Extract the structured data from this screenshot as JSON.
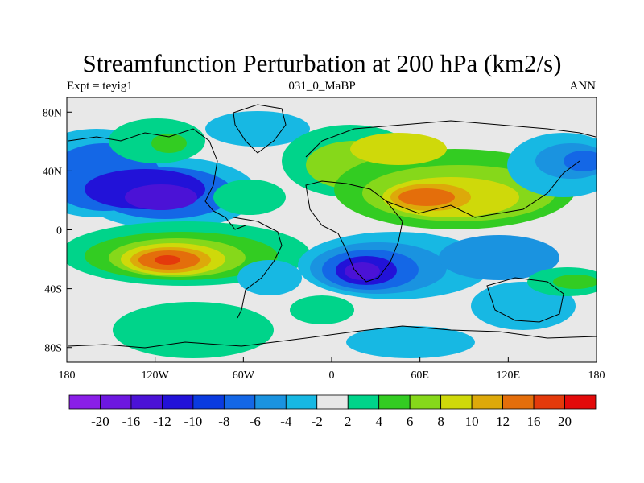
{
  "title": "Streamfunction Perturbation at 200 hPa (km2/s)",
  "subtitle_left": "Expt = teyig1",
  "subtitle_center": "031_0_MaBP",
  "subtitle_right": "ANN",
  "map": {
    "x_ticks": [
      "180",
      "120W",
      "60W",
      "0",
      "60E",
      "120E",
      "180"
    ],
    "y_ticks": [
      "80N",
      "40N",
      "0",
      "40S",
      "80S"
    ],
    "lon_range": [
      -180,
      180
    ],
    "lat_range": [
      -90,
      90
    ],
    "projection": "cylindrical equidistant",
    "background_color": "#e8e8e8"
  },
  "colorbar": {
    "labels": [
      "-20",
      "-16",
      "-12",
      "-10",
      "-8",
      "-6",
      "-4",
      "-2",
      "2",
      "4",
      "6",
      "8",
      "10",
      "12",
      "16",
      "20"
    ],
    "colors": [
      "#8a1fe8",
      "#6d17e0",
      "#4b12d6",
      "#2212d8",
      "#0a3be0",
      "#1467e6",
      "#1a93e0",
      "#17b8e3",
      "#e8e8e8",
      "#00d48a",
      "#33cc22",
      "#86d81a",
      "#cfd90a",
      "#dda90a",
      "#e46e0b",
      "#e43a0b",
      "#e30a0a"
    ]
  }
}
